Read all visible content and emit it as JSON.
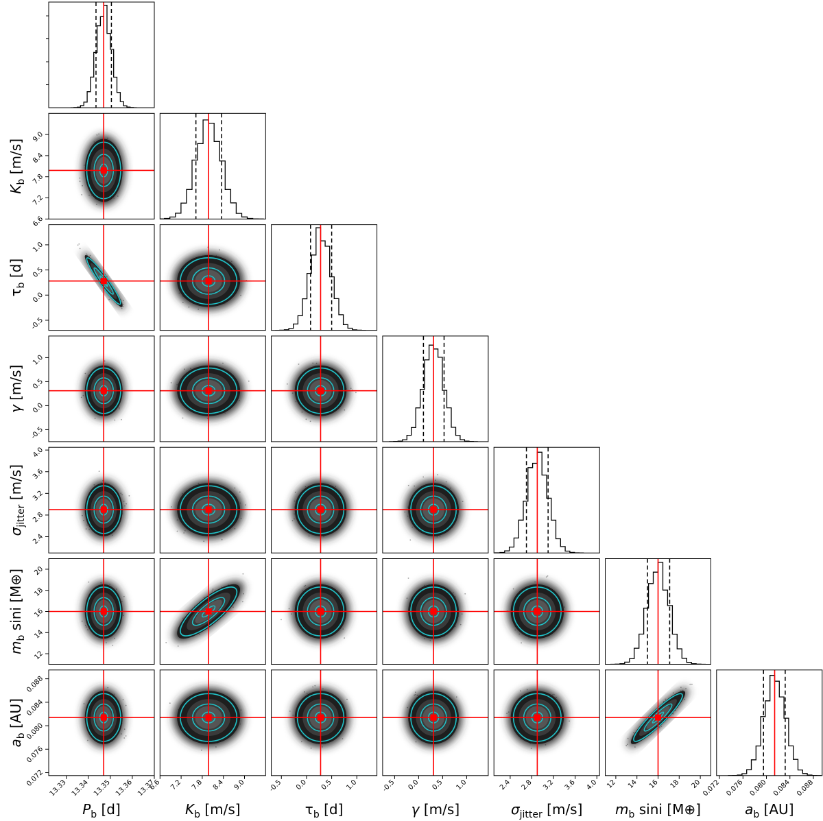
{
  "chart_data": {
    "type": "corner",
    "colors": {
      "truth": "#ff0000",
      "contour": "#21c3c9",
      "hist": "#000000",
      "quantile": "#000000"
    },
    "params": [
      {
        "key": "Pb",
        "symbol": "P",
        "sub": "b",
        "unit": "[d]",
        "italic": true,
        "range": [
          13.322,
          13.37
        ],
        "truth": 13.347,
        "q16": 13.3435,
        "q84": 13.3505,
        "ticks": [
          "13.33",
          "13.34",
          "13.35",
          "13.36",
          "13.37"
        ],
        "tick_values": [
          13.33,
          13.34,
          13.35,
          13.36,
          13.37
        ]
      },
      {
        "key": "Kb",
        "symbol": "K",
        "sub": "b",
        "unit": "[m/s]",
        "italic": true,
        "range": [
          6.6,
          9.6
        ],
        "truth": 7.98,
        "q16": 7.62,
        "q84": 8.35,
        "ticks": [
          "6.6",
          "7.2",
          "7.8",
          "8.4",
          "9.0"
        ],
        "tick_values": [
          6.6,
          7.2,
          7.8,
          8.4,
          9.0
        ]
      },
      {
        "key": "taub",
        "symbol": "τ",
        "sub": "b",
        "unit": "[d]",
        "italic": false,
        "range": [
          -0.7,
          1.4
        ],
        "truth": 0.28,
        "q16": 0.08,
        "q84": 0.5,
        "ticks": [
          "-0.5",
          "0.0",
          "0.5",
          "1.0"
        ],
        "tick_values": [
          -0.5,
          0.0,
          0.5,
          1.0
        ]
      },
      {
        "key": "gamma",
        "symbol": "γ",
        "sub": "",
        "unit": "[m/s]",
        "italic": true,
        "range": [
          -0.75,
          1.45
        ],
        "truth": 0.31,
        "q16": 0.1,
        "q84": 0.53,
        "ticks": [
          "-0.5",
          "0.0",
          "0.5",
          "1.0"
        ],
        "tick_values": [
          -0.5,
          0.0,
          0.5,
          1.0
        ]
      },
      {
        "key": "sigmaj",
        "symbol": "σ",
        "sub": "jitter",
        "unit": "[m/s]",
        "italic": true,
        "range": [
          2.1,
          4.05
        ],
        "truth": 2.9,
        "q16": 2.7,
        "q84": 3.1,
        "ticks": [
          "2.4",
          "2.8",
          "3.2",
          "3.6",
          "4.0"
        ],
        "tick_values": [
          2.4,
          2.8,
          3.2,
          3.6,
          4.0
        ]
      },
      {
        "key": "msini",
        "symbol": "m",
        "sub": "b",
        "unit": "sini [M⊕]",
        "italic": true,
        "range": [
          11.0,
          21.0
        ],
        "truth": 16.0,
        "q16": 15.0,
        "q84": 17.1,
        "ticks": [
          "12",
          "14",
          "16",
          "18",
          "20"
        ],
        "tick_values": [
          12,
          14,
          16,
          18,
          20
        ]
      },
      {
        "key": "ab",
        "symbol": "a",
        "sub": "b",
        "unit": "[AU]",
        "italic": true,
        "range": [
          0.0715,
          0.0895
        ],
        "truth": 0.0814,
        "q16": 0.0795,
        "q84": 0.0832,
        "ticks": [
          "0.072",
          "0.076",
          "0.080",
          "0.084",
          "0.088"
        ],
        "tick_values": [
          0.072,
          0.076,
          0.08,
          0.084,
          0.088
        ]
      }
    ],
    "correlations": {
      "Pb|taub": -0.95,
      "Kb|msini": 0.8,
      "msini|ab": 0.92
    }
  }
}
